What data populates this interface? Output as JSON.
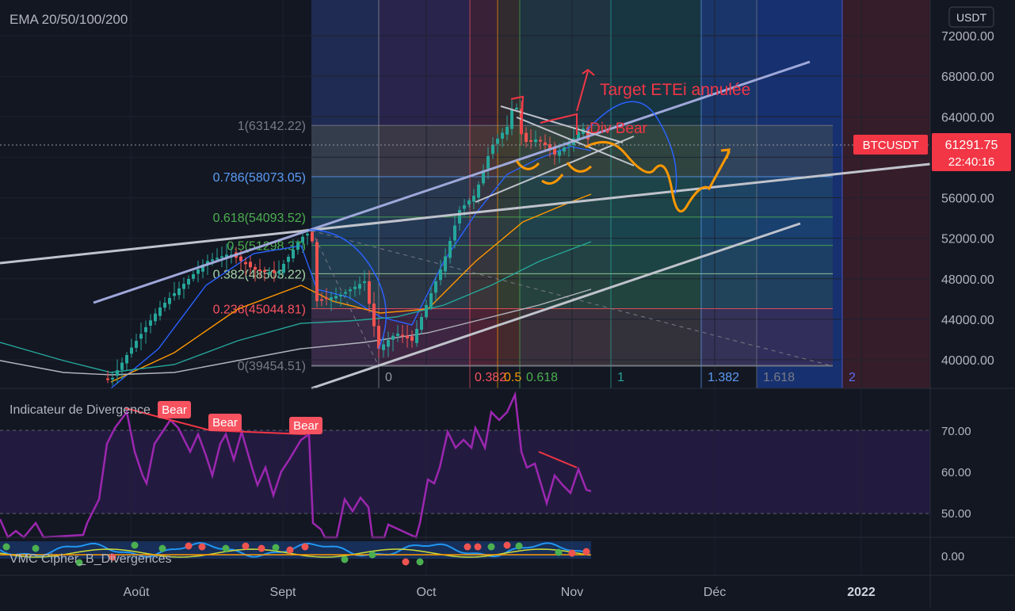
{
  "main_pane": {
    "title": "EMA 20/50/100/200",
    "currency": "USDT",
    "ticker": "BTCUSDT",
    "last_price": "61291.75",
    "countdown": "22:40:16",
    "annotation_target": "Target ETEi annulée",
    "annotation_div": "Div Bear"
  },
  "rsi_pane": {
    "title": "Indicateur de Divergence",
    "ticks": [
      "70.00",
      "60.00",
      "50.00"
    ],
    "bear_labels": [
      "Bear",
      "Bear",
      "Bear"
    ]
  },
  "wt_pane": {
    "title": "VMC Cipher_B_Divergences",
    "ticks": [
      "0.00"
    ]
  },
  "colors": {
    "background": "#131722",
    "up": "#26a69a",
    "down": "#ef5350",
    "ema20": "#2962ff",
    "ema50": "#ff9800",
    "ema100": "#26a69a",
    "ema200": "#b2b5be",
    "rsi": "#9c27b0",
    "annotation_red": "#f23645",
    "annotation_orange": "#ff9800"
  },
  "chart_data": {
    "type": "candlestick",
    "y_axis_ticks": [
      "72000.00",
      "68000.00",
      "64000.00",
      "60000.00",
      "56000.00",
      "52000.00",
      "48000.00",
      "44000.00",
      "40000.00"
    ],
    "ylim": [
      37000,
      75000
    ],
    "x_axis_ticks": [
      "Août",
      "Sept",
      "Oct",
      "Nov",
      "Déc",
      "2022"
    ],
    "fib_retracement": [
      {
        "level": "1",
        "price": "63142.22",
        "label": "1(63142.22)"
      },
      {
        "level": "0.786",
        "price": "58073.05",
        "label": "0.786(58073.05)"
      },
      {
        "level": "0.618",
        "price": "54093.52",
        "label": "0.618(54093.52)"
      },
      {
        "level": "0.5",
        "price": "51298.37",
        "label": "0.5(51298.37)"
      },
      {
        "level": "0.382",
        "price": "48503.22",
        "label": "0.382(48503.22)"
      },
      {
        "level": "0.236",
        "price": "45044.81",
        "label": "0.236(45044.81)"
      },
      {
        "level": "0",
        "price": "39454.51",
        "label": "0(39454.51)"
      }
    ],
    "fib_time_labels": [
      "0",
      "0.382",
      "0.5",
      "0.618",
      "1",
      "1.382",
      "1.618",
      "2"
    ],
    "rsi_ylim": [
      43,
      80
    ]
  }
}
